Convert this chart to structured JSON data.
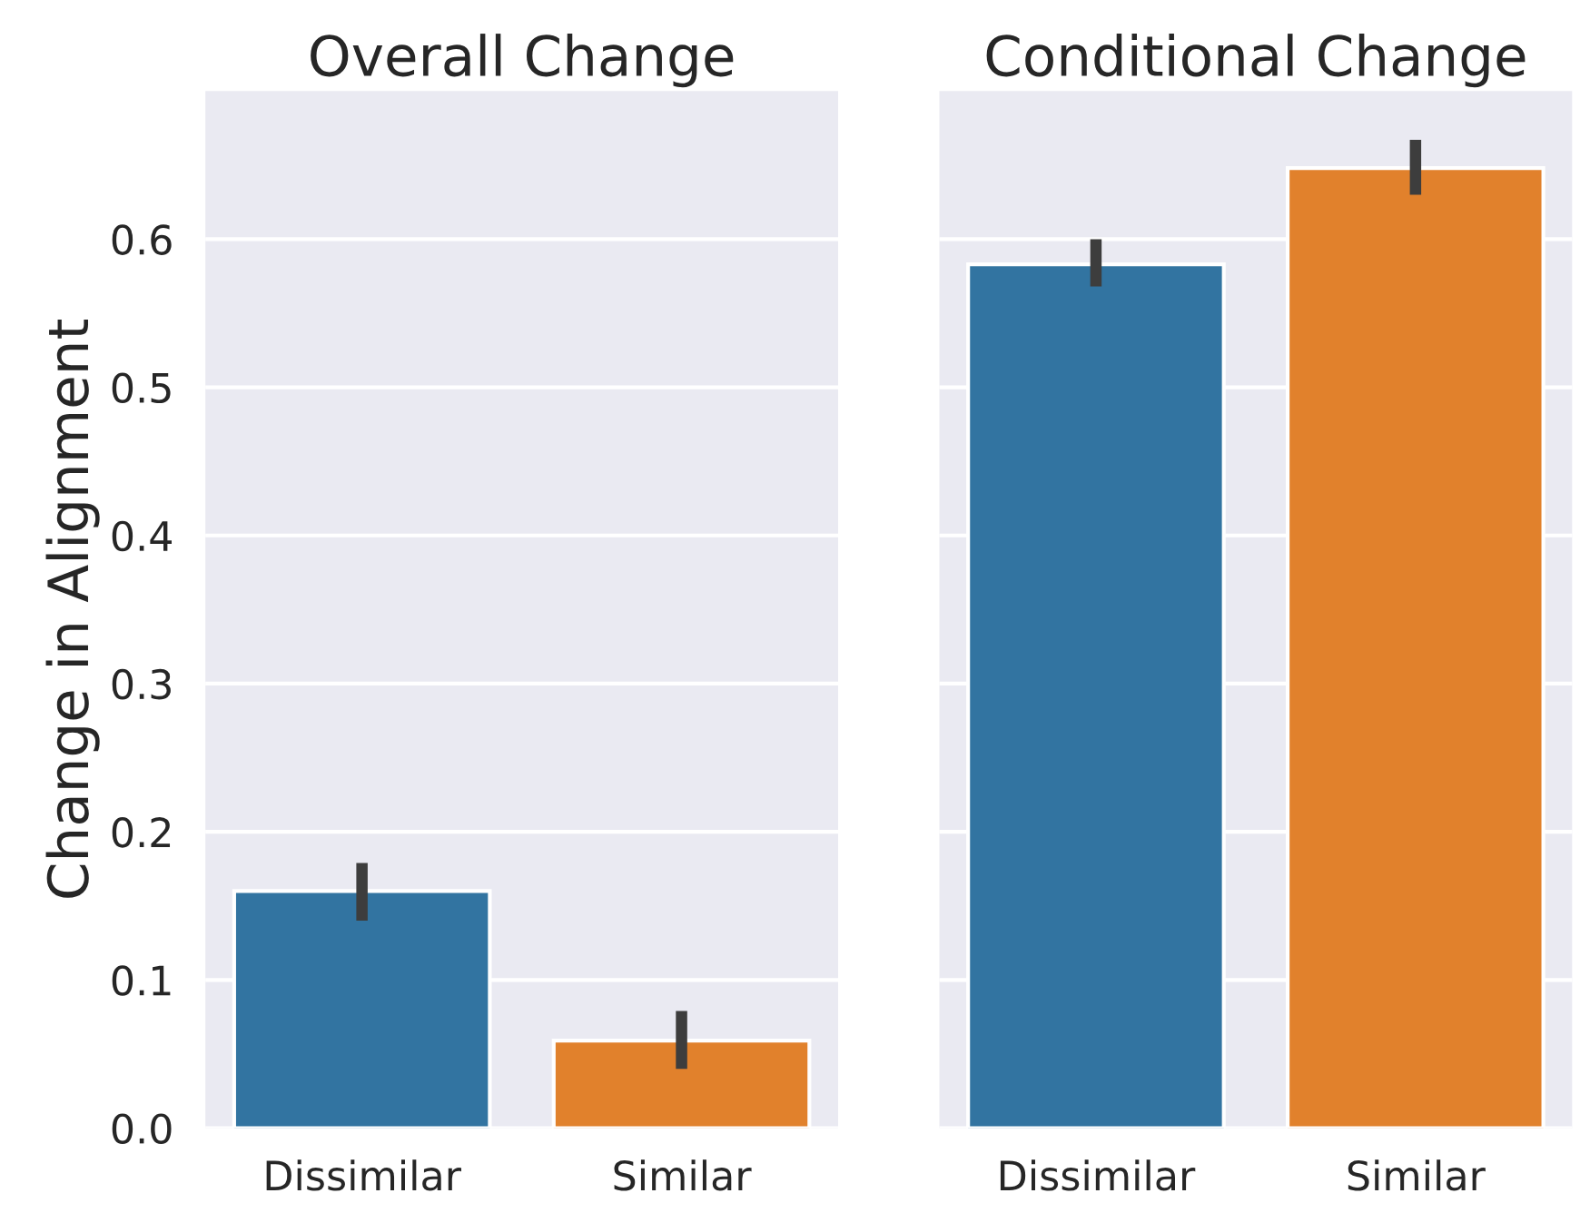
{
  "chart_data": [
    {
      "type": "bar",
      "title": "Overall Change",
      "ylabel": "Change in Alignment",
      "categories": [
        "Dissimilar",
        "Similar"
      ],
      "values": [
        0.16,
        0.059
      ],
      "colors": [
        "#3274a1",
        "#e1812c"
      ],
      "errors": [
        [
          0.14,
          0.179
        ],
        [
          0.04,
          0.079
        ]
      ],
      "ylim": [
        0,
        0.7
      ],
      "yticks": [
        {
          "value": 0,
          "label": "0.0"
        },
        0.1,
        0.2,
        0.3,
        0.4,
        0.5,
        0.6
      ],
      "grid": "y"
    },
    {
      "type": "bar",
      "title": "Conditional Change",
      "categories": [
        "Dissimilar",
        "Similar"
      ],
      "values": [
        0.583,
        0.648
      ],
      "colors": [
        "#3274a1",
        "#e1812c"
      ],
      "errors": [
        [
          0.568,
          0.6
        ],
        [
          0.63,
          0.667
        ]
      ],
      "ylim": [
        0,
        0.7
      ],
      "yticks": [
        0,
        0.1,
        0.2,
        0.3,
        0.4,
        0.5,
        0.6
      ],
      "grid": "y",
      "tick_labels": "x"
    }
  ]
}
